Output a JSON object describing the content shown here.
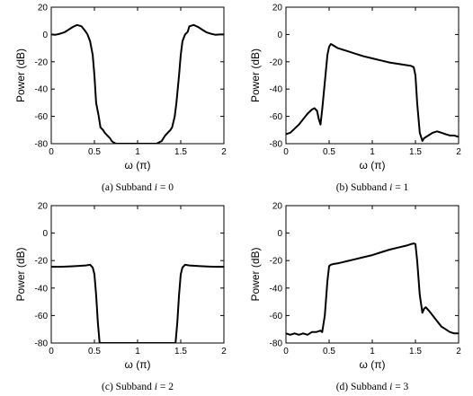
{
  "chart_data": [
    {
      "type": "line",
      "caption": {
        "prefix": "(a) Subband ",
        "var": "i",
        "suffix": " = 0"
      },
      "xlabel": "ω (π)",
      "ylabel": "Power (dB)",
      "xlim": [
        0,
        2
      ],
      "ylim": [
        -80,
        20
      ],
      "xticks": [
        "0",
        "0.5",
        "1",
        "1.5",
        "2"
      ],
      "yticks": [
        "20",
        "0",
        "-20",
        "-40",
        "-60",
        "-80"
      ],
      "grid": false,
      "series": [
        {
          "x": [
            0,
            0.05,
            0.1,
            0.15,
            0.2,
            0.25,
            0.3,
            0.35,
            0.4,
            0.42,
            0.45,
            0.48,
            0.5,
            0.52,
            0.55,
            0.57,
            0.6,
            0.62,
            0.65,
            0.68,
            0.7,
            0.72,
            0.75,
            0.78,
            0.8,
            1.2,
            1.22,
            1.25,
            1.28,
            1.3,
            1.32,
            1.35,
            1.38,
            1.4,
            1.43,
            1.45,
            1.48,
            1.5,
            1.52,
            1.55,
            1.58,
            1.6,
            1.65,
            1.7,
            1.75,
            1.8,
            1.85,
            1.9,
            1.95,
            2.0
          ],
          "y": [
            0,
            -0.2,
            0.5,
            1.5,
            3.5,
            5.5,
            7,
            6,
            2,
            0,
            -5,
            -15,
            -30,
            -50,
            -60,
            -68,
            -70,
            -72,
            -74,
            -76,
            -78,
            -79,
            -80,
            -80,
            -80,
            -80,
            -80,
            -79,
            -78,
            -76,
            -74,
            -72,
            -70,
            -68,
            -60,
            -50,
            -30,
            -15,
            -5,
            0,
            2,
            6,
            7,
            5.5,
            3.5,
            1.5,
            0.5,
            -0.2,
            0,
            0
          ]
        }
      ]
    },
    {
      "type": "line",
      "caption": {
        "prefix": "(b) Subband ",
        "var": "i",
        "suffix": " = 1"
      },
      "xlabel": "ω (π)",
      "ylabel": "Power (dB)",
      "xlim": [
        0,
        2
      ],
      "ylim": [
        -80,
        20
      ],
      "xticks": [
        "0",
        "0.5",
        "1",
        "1.5",
        "2"
      ],
      "yticks": [
        "20",
        "0",
        "-20",
        "-40",
        "-60",
        "-80"
      ],
      "grid": false,
      "series": [
        {
          "x": [
            0,
            0.05,
            0.1,
            0.15,
            0.2,
            0.25,
            0.3,
            0.33,
            0.36,
            0.38,
            0.4,
            0.42,
            0.45,
            0.48,
            0.5,
            0.52,
            0.55,
            0.6,
            0.7,
            0.8,
            0.9,
            1.0,
            1.1,
            1.2,
            1.3,
            1.4,
            1.45,
            1.48,
            1.5,
            1.52,
            1.55,
            1.58,
            1.6,
            1.65,
            1.7,
            1.75,
            1.8,
            1.85,
            1.9,
            1.95,
            2.0
          ],
          "y": [
            -73,
            -72,
            -69,
            -66,
            -62,
            -58,
            -55,
            -54,
            -56,
            -62,
            -66,
            -55,
            -35,
            -15,
            -9,
            -7,
            -8,
            -10,
            -12,
            -14,
            -16,
            -17.5,
            -19,
            -20.5,
            -21.5,
            -22.5,
            -23,
            -24,
            -30,
            -50,
            -72,
            -78,
            -76,
            -74,
            -72,
            -71,
            -72,
            -73,
            -74,
            -74,
            -75
          ]
        }
      ]
    },
    {
      "type": "line",
      "caption": {
        "prefix": "(c) Subband ",
        "var": "i",
        "suffix": " = 2"
      },
      "xlabel": "ω (π)",
      "ylabel": "Power (dB)",
      "xlim": [
        0,
        2
      ],
      "ylim": [
        -80,
        20
      ],
      "xticks": [
        "0",
        "0.5",
        "1",
        "1.5",
        "2"
      ],
      "yticks": [
        "20",
        "0",
        "-20",
        "-40",
        "-60",
        "-80"
      ],
      "grid": false,
      "series": [
        {
          "x": [
            0,
            0.1,
            0.2,
            0.3,
            0.4,
            0.45,
            0.48,
            0.5,
            0.52,
            0.54,
            0.56,
            0.58,
            0.6,
            1.4,
            1.42,
            1.44,
            1.46,
            1.48,
            1.5,
            1.52,
            1.55,
            1.6,
            1.7,
            1.8,
            1.9,
            2.0
          ],
          "y": [
            -24.5,
            -24.5,
            -24.3,
            -24,
            -23.5,
            -23,
            -25,
            -30,
            -45,
            -65,
            -80,
            -80,
            -80,
            -80,
            -80,
            -80,
            -65,
            -45,
            -30,
            -25,
            -23,
            -23.5,
            -24,
            -24.3,
            -24.5,
            -24.5
          ]
        }
      ]
    },
    {
      "type": "line",
      "caption": {
        "prefix": "(d) Subband ",
        "var": "i",
        "suffix": " = 3"
      },
      "xlabel": "ω (π)",
      "ylabel": "Power (dB)",
      "xlim": [
        0,
        2
      ],
      "ylim": [
        -80,
        20
      ],
      "xticks": [
        "0",
        "0.5",
        "1",
        "1.5",
        "2"
      ],
      "yticks": [
        "20",
        "0",
        "-20",
        "-40",
        "-60",
        "-80"
      ],
      "grid": false,
      "series": [
        {
          "x": [
            0,
            0.05,
            0.1,
            0.15,
            0.2,
            0.25,
            0.3,
            0.35,
            0.4,
            0.42,
            0.45,
            0.48,
            0.5,
            0.52,
            0.55,
            0.6,
            0.7,
            0.8,
            0.9,
            1.0,
            1.1,
            1.2,
            1.3,
            1.4,
            1.45,
            1.48,
            1.5,
            1.52,
            1.55,
            1.58,
            1.6,
            1.62,
            1.65,
            1.7,
            1.75,
            1.8,
            1.85,
            1.9,
            1.95,
            2.0
          ],
          "y": [
            -73,
            -74,
            -73,
            -74,
            -73,
            -74,
            -72,
            -72,
            -71,
            -72,
            -60,
            -35,
            -24,
            -23,
            -22.5,
            -22,
            -20.5,
            -19,
            -17.5,
            -16,
            -14,
            -12,
            -10.5,
            -9,
            -8,
            -7.5,
            -8,
            -20,
            -45,
            -58,
            -55,
            -54,
            -56,
            -60,
            -64,
            -68,
            -70,
            -72,
            -73,
            -73
          ]
        }
      ]
    }
  ]
}
